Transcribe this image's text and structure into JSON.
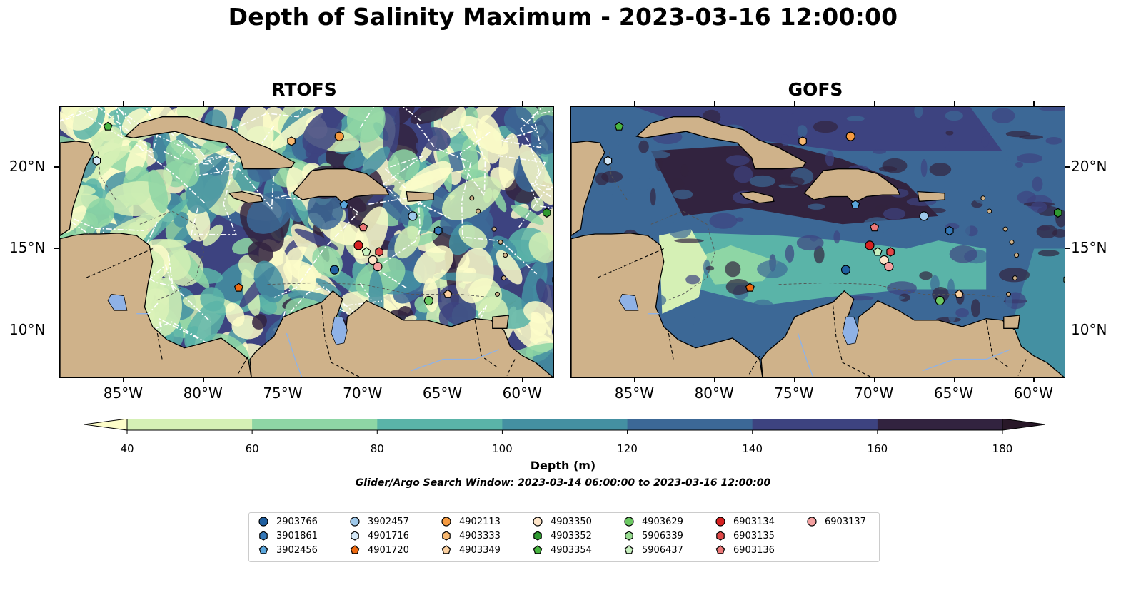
{
  "title": "Depth of Salinity Maximum - 2023-03-16 12:00:00",
  "panels": [
    {
      "title": "RTOFS"
    },
    {
      "title": "GOFS"
    }
  ],
  "axes": {
    "lon_ticks": [
      "85°W",
      "80°W",
      "75°W",
      "70°W",
      "65°W",
      "60°W"
    ],
    "lon_values": [
      -85,
      -80,
      -75,
      -70,
      -65,
      -60
    ],
    "lat_ticks": [
      "20°N",
      "15°N",
      "10°N"
    ],
    "lat_values": [
      20,
      15,
      10
    ],
    "lon_range": [
      -89,
      -58
    ],
    "lat_range": [
      7,
      23.7
    ]
  },
  "colorbar": {
    "label": "Depth (m)",
    "ticks": [
      "40",
      "60",
      "80",
      "100",
      "120",
      "140",
      "160",
      "180"
    ],
    "tick_values": [
      40,
      60,
      80,
      100,
      120,
      140,
      160,
      180
    ],
    "colors": [
      "#fdfdc9",
      "#d5f0b5",
      "#8ed6a5",
      "#5ab4a8",
      "#4490a2",
      "#3c6896",
      "#3d4380",
      "#32233f",
      "#281728"
    ],
    "extend": "both"
  },
  "search_window": "Glider/Argo Search Window: 2023-03-14 06:00:00 to 2023-03-16 12:00:00",
  "land_color": "#cfb28a",
  "water_color": "#a8c0e0",
  "floats": [
    {
      "id": "2903766",
      "marker": "circle",
      "color": "#1f5fa0",
      "lon": -71.8,
      "lat": 13.7
    },
    {
      "id": "3901861",
      "marker": "hexagon",
      "color": "#3478b8",
      "lon": -65.3,
      "lat": 16.1
    },
    {
      "id": "3902456",
      "marker": "pentagon",
      "color": "#5aa6dc",
      "lon": -71.2,
      "lat": 17.7
    },
    {
      "id": "3902457",
      "marker": "circle",
      "color": "#9ec8ea",
      "lon": -66.9,
      "lat": 17.0
    },
    {
      "id": "4901716",
      "marker": "hexagon",
      "color": "#d4e8f8",
      "lon": -86.7,
      "lat": 20.4
    },
    {
      "id": "4901720",
      "marker": "pentagon",
      "color": "#ee6a10",
      "lon": -77.8,
      "lat": 12.6
    },
    {
      "id": "4902113",
      "marker": "circle",
      "color": "#f59a40",
      "lon": -71.5,
      "lat": 21.9
    },
    {
      "id": "4903333",
      "marker": "hexagon",
      "color": "#f8b870",
      "lon": -74.5,
      "lat": 21.6
    },
    {
      "id": "4903349",
      "marker": "pentagon",
      "color": "#fbd0a0",
      "lon": -64.7,
      "lat": 12.2
    },
    {
      "id": "4903350",
      "marker": "circle",
      "color": "#fde4c8",
      "lon": -69.4,
      "lat": 14.3
    },
    {
      "id": "4903352",
      "marker": "hexagon",
      "color": "#2f9a30",
      "lon": -58.5,
      "lat": 17.2
    },
    {
      "id": "4903354",
      "marker": "pentagon",
      "color": "#48b540",
      "lon": -86.0,
      "lat": 22.5
    },
    {
      "id": "4903629",
      "marker": "circle",
      "color": "#6cc863",
      "lon": -65.9,
      "lat": 11.8
    },
    {
      "id": "5906339",
      "marker": "hexagon",
      "color": "#98dc90",
      "lon": -57.9,
      "lat": 13.1
    },
    {
      "id": "5906437",
      "marker": "pentagon",
      "color": "#c8f0c0",
      "lon": -69.8,
      "lat": 14.8
    },
    {
      "id": "6903134",
      "marker": "circle",
      "color": "#d62020",
      "lon": -70.3,
      "lat": 15.2
    },
    {
      "id": "6903135",
      "marker": "hexagon",
      "color": "#e04848",
      "lon": -69.0,
      "lat": 14.8
    },
    {
      "id": "6903136",
      "marker": "pentagon",
      "color": "#ec7878",
      "lon": -70.0,
      "lat": 16.3
    },
    {
      "id": "6903137",
      "marker": "circle",
      "color": "#f4a0a0",
      "lon": -69.1,
      "lat": 13.9
    }
  ]
}
